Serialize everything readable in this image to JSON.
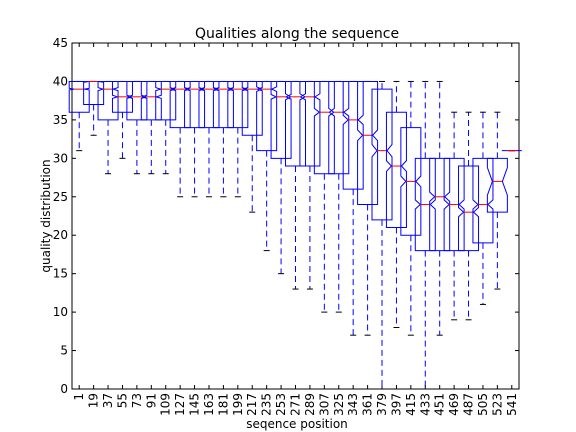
{
  "chart_data": {
    "type": "boxplot",
    "title": "Qualities along the sequence",
    "xlabel": "seqence position",
    "ylabel": "quality distribution",
    "ylim": [
      0,
      45
    ],
    "yticks": [
      0,
      5,
      10,
      15,
      20,
      25,
      30,
      35,
      40,
      45
    ],
    "grid": false,
    "categories": [
      "1",
      "19",
      "37",
      "55",
      "73",
      "91",
      "109",
      "127",
      "145",
      "163",
      "181",
      "199",
      "217",
      "235",
      "253",
      "271",
      "289",
      "307",
      "325",
      "343",
      "361",
      "379",
      "397",
      "415",
      "433",
      "451",
      "469",
      "487",
      "505",
      "523",
      "541"
    ],
    "boxes": [
      {
        "whislo": 31,
        "q1": 36,
        "med": 39,
        "q3": 40,
        "whishi": 40,
        "notch": [
          38.9,
          39.1
        ]
      },
      {
        "whislo": 33,
        "q1": 37,
        "med": 40,
        "q3": 40,
        "whishi": 40,
        "notch": [
          39.9,
          40
        ]
      },
      {
        "whislo": 28,
        "q1": 35,
        "med": 39,
        "q3": 40,
        "whishi": 40,
        "notch": [
          38.8,
          39.2
        ]
      },
      {
        "whislo": 30,
        "q1": 36,
        "med": 38,
        "q3": 40,
        "whishi": 40,
        "notch": [
          37.8,
          38.2
        ]
      },
      {
        "whislo": 28,
        "q1": 35,
        "med": 38,
        "q3": 40,
        "whishi": 40,
        "notch": [
          37.8,
          38.2
        ]
      },
      {
        "whislo": 28,
        "q1": 35,
        "med": 38,
        "q3": 40,
        "whishi": 40,
        "notch": [
          37.8,
          38.2
        ]
      },
      {
        "whislo": 28,
        "q1": 35,
        "med": 39,
        "q3": 40,
        "whishi": 40,
        "notch": [
          38.8,
          39.2
        ]
      },
      {
        "whislo": 25,
        "q1": 34,
        "med": 39,
        "q3": 40,
        "whishi": 40,
        "notch": [
          38.8,
          39.2
        ]
      },
      {
        "whislo": 25,
        "q1": 34,
        "med": 39,
        "q3": 40,
        "whishi": 40,
        "notch": [
          38.8,
          39.2
        ]
      },
      {
        "whislo": 25,
        "q1": 34,
        "med": 39,
        "q3": 40,
        "whishi": 40,
        "notch": [
          38.8,
          39.2
        ]
      },
      {
        "whislo": 25,
        "q1": 34,
        "med": 39,
        "q3": 40,
        "whishi": 40,
        "notch": [
          38.8,
          39.2
        ]
      },
      {
        "whislo": 25,
        "q1": 34,
        "med": 39,
        "q3": 40,
        "whishi": 40,
        "notch": [
          38.8,
          39.2
        ]
      },
      {
        "whislo": 23,
        "q1": 33,
        "med": 39,
        "q3": 40,
        "whishi": 40,
        "notch": [
          38.8,
          39.2
        ]
      },
      {
        "whislo": 18,
        "q1": 31,
        "med": 39,
        "q3": 40,
        "whishi": 40,
        "notch": [
          38.7,
          39.3
        ]
      },
      {
        "whislo": 15,
        "q1": 30,
        "med": 38,
        "q3": 40,
        "whishi": 40,
        "notch": [
          37.7,
          38.3
        ]
      },
      {
        "whislo": 13,
        "q1": 29,
        "med": 38,
        "q3": 40,
        "whishi": 40,
        "notch": [
          37.6,
          38.4
        ]
      },
      {
        "whislo": 13,
        "q1": 29,
        "med": 38,
        "q3": 40,
        "whishi": 40,
        "notch": [
          37.6,
          38.4
        ]
      },
      {
        "whislo": 10,
        "q1": 28,
        "med": 36,
        "q3": 40,
        "whishi": 40,
        "notch": [
          35.5,
          36.5
        ]
      },
      {
        "whislo": 10,
        "q1": 28,
        "med": 36,
        "q3": 40,
        "whishi": 40,
        "notch": [
          35.5,
          36.5
        ]
      },
      {
        "whislo": 7,
        "q1": 26,
        "med": 35,
        "q3": 40,
        "whishi": 40,
        "notch": [
          34.4,
          35.6
        ]
      },
      {
        "whislo": 7,
        "q1": 24,
        "med": 33,
        "q3": 40,
        "whishi": 40,
        "notch": [
          32.3,
          33.7
        ]
      },
      {
        "whislo": 0,
        "q1": 22,
        "med": 31,
        "q3": 39,
        "whishi": 40,
        "notch": [
          30.2,
          31.8
        ]
      },
      {
        "whislo": 8,
        "q1": 21,
        "med": 29,
        "q3": 36,
        "whishi": 40,
        "notch": [
          28.3,
          29.7
        ]
      },
      {
        "whislo": 7,
        "q1": 20,
        "med": 27,
        "q3": 34,
        "whishi": 40,
        "notch": [
          26.3,
          27.7
        ]
      },
      {
        "whislo": 0,
        "q1": 18,
        "med": 24,
        "q3": 30,
        "whishi": 40,
        "notch": [
          23.4,
          24.6
        ]
      },
      {
        "whislo": 7,
        "q1": 18,
        "med": 25,
        "q3": 30,
        "whishi": 40,
        "notch": [
          24.4,
          25.6
        ]
      },
      {
        "whislo": 9,
        "q1": 18,
        "med": 24,
        "q3": 30,
        "whishi": 36,
        "notch": [
          23.4,
          24.6
        ]
      },
      {
        "whislo": 9,
        "q1": 18,
        "med": 23,
        "q3": 29,
        "whishi": 36,
        "notch": [
          22.4,
          23.6
        ]
      },
      {
        "whislo": 11,
        "q1": 19,
        "med": 24,
        "q3": 30,
        "whishi": 36,
        "notch": [
          23.4,
          24.6
        ]
      },
      {
        "whislo": 13,
        "q1": 23,
        "med": 27,
        "q3": 30,
        "whishi": 36,
        "notch": [
          25.2,
          28.8
        ]
      },
      {
        "whislo": 31,
        "q1": 31,
        "med": 31,
        "q3": 31,
        "whishi": 31,
        "notch": [
          31,
          31
        ]
      }
    ],
    "colors": {
      "box": "#0000ff",
      "median": "#ff0000",
      "whisker": "#0000ff",
      "cap": "#000000",
      "axes": "#000000"
    }
  }
}
